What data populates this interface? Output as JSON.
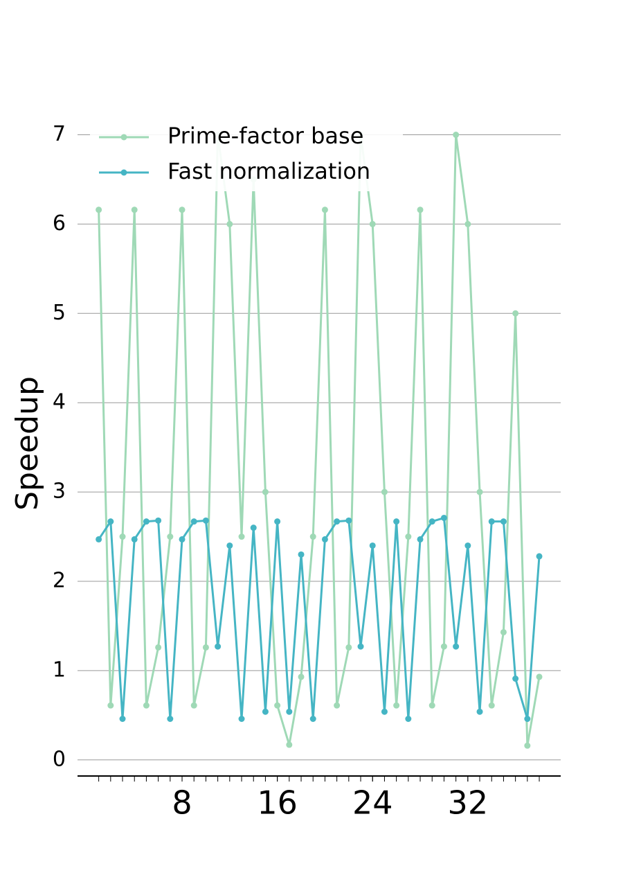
{
  "chart_data": {
    "type": "line",
    "y_label": "Speedup",
    "x": [
      1,
      2,
      3,
      4,
      5,
      6,
      7,
      8,
      9,
      10,
      11,
      12,
      13,
      14,
      15,
      16,
      17,
      18,
      19,
      20,
      21,
      22,
      23,
      24,
      25,
      26,
      27,
      28,
      29,
      30,
      31,
      32,
      33,
      34,
      35,
      36,
      37,
      38
    ],
    "series": [
      {
        "name": "Prime-factor base",
        "color": "#9fd9b6",
        "values": [
          6.16,
          0.61,
          2.5,
          6.16,
          0.61,
          1.26,
          2.5,
          6.16,
          0.61,
          1.26,
          7,
          6,
          2.5,
          6.5,
          3,
          0.61,
          0.17,
          0.93,
          2.5,
          6.16,
          0.61,
          1.26,
          7,
          6,
          3,
          0.61,
          2.5,
          6.16,
          0.61,
          1.27,
          7,
          6,
          3,
          0.61,
          1.43,
          5,
          0.16,
          0.93
        ]
      },
      {
        "name": "Fast normalization",
        "color": "#45b5c4",
        "values": [
          2.47,
          2.67,
          0.46,
          2.47,
          2.67,
          2.68,
          0.46,
          2.47,
          2.67,
          2.68,
          1.27,
          2.4,
          0.46,
          2.6,
          0.54,
          2.67,
          0.54,
          2.3,
          0.46,
          2.47,
          2.67,
          2.68,
          1.27,
          2.4,
          0.54,
          2.67,
          0.46,
          2.47,
          2.67,
          2.71,
          1.27,
          2.4,
          0.54,
          2.67,
          2.67,
          0.91,
          0.46,
          2.28
        ]
      }
    ],
    "xlim": [
      -0.78,
      39.8
    ],
    "xticks": [
      8,
      16,
      24,
      32
    ],
    "ylim": [
      -0.18,
      7.35
    ],
    "yticks": [
      0,
      1,
      2,
      3,
      4,
      5,
      6,
      7
    ],
    "grid": true,
    "legend": "upper left"
  }
}
